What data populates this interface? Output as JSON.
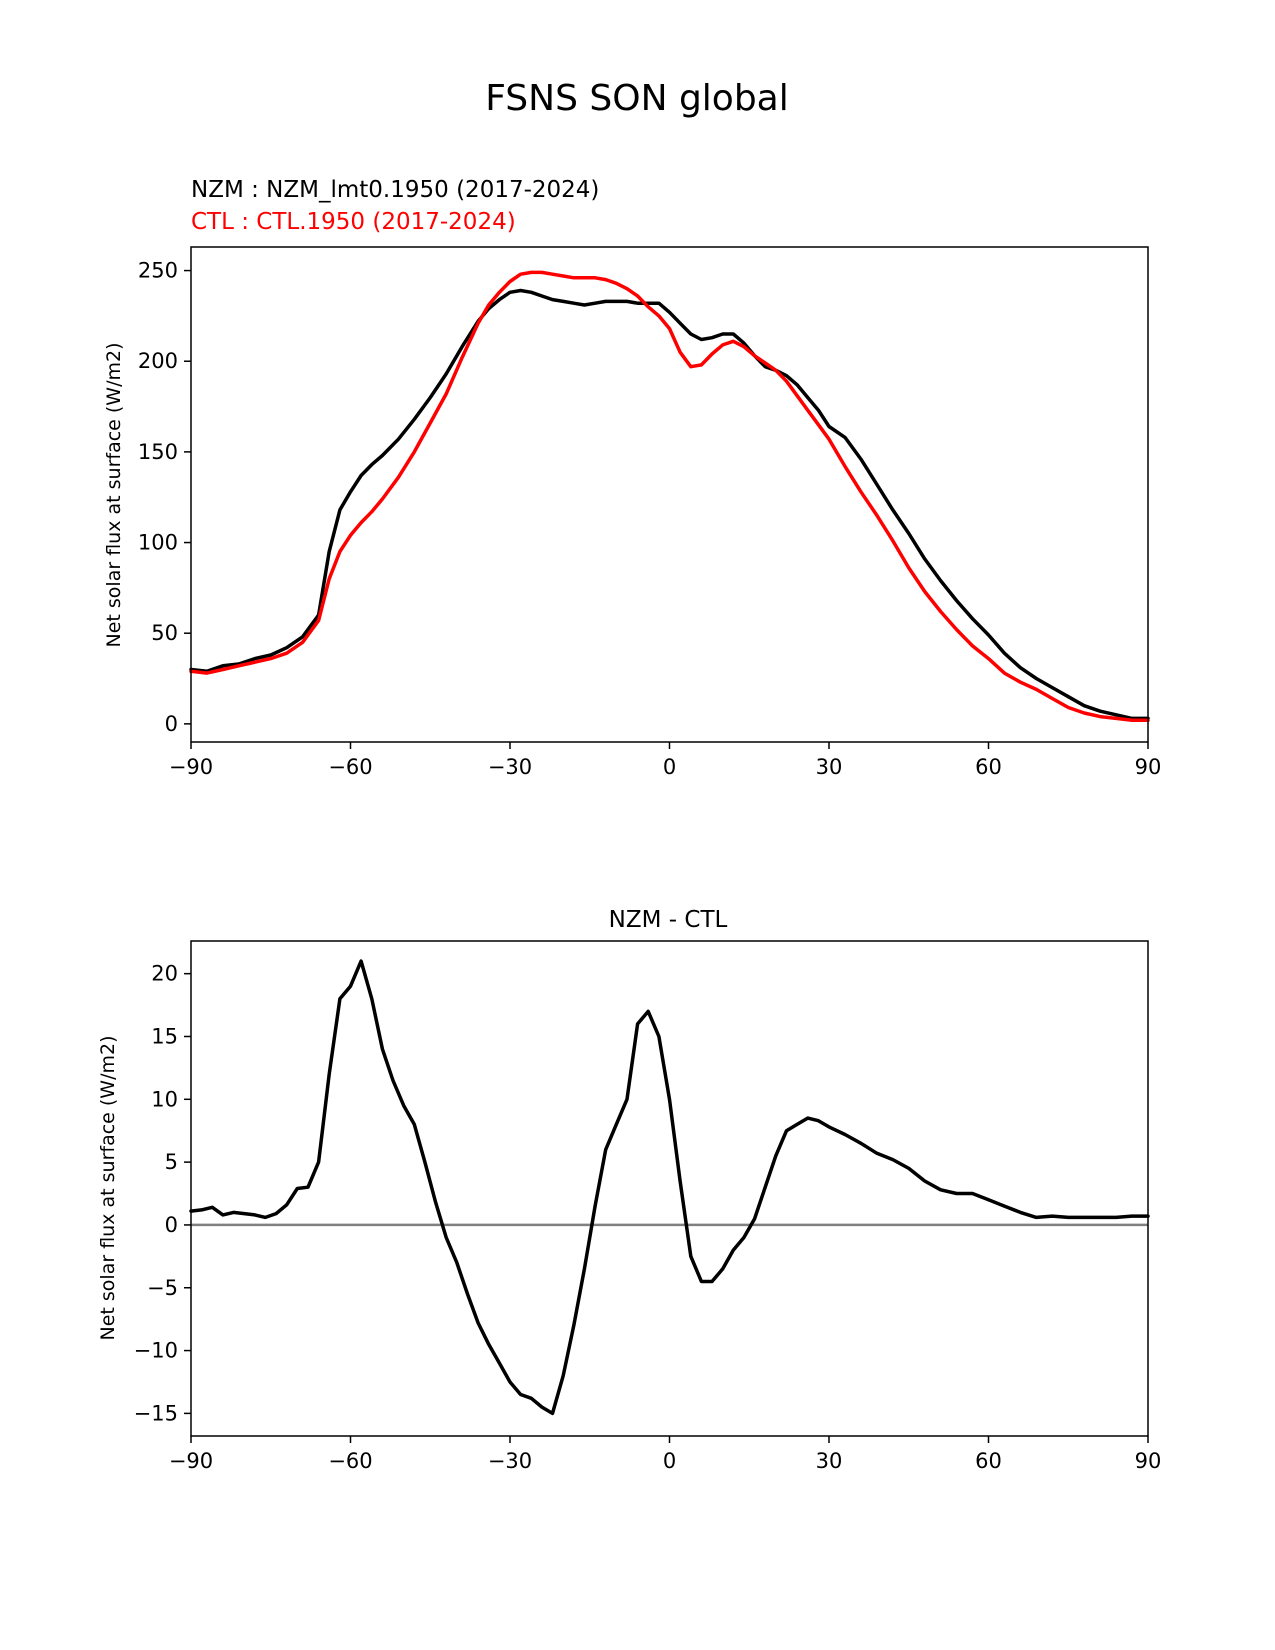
{
  "title": "FSNS SON global",
  "colors": {
    "nzm": "#000000",
    "ctl": "#ff0000",
    "zero_line": "#808080"
  },
  "chart_data": [
    {
      "type": "line",
      "legend_lines": [
        {
          "text": "NZM  : NZM_lmt0.1950 (2017-2024)",
          "color": "#000000"
        },
        {
          "text": "CTL : CTL.1950 (2017-2024)",
          "color": "#ff0000"
        }
      ],
      "xlabel": "",
      "ylabel": "Net solar flux at surface (W/m2)",
      "xlim": [
        -90,
        90
      ],
      "ylim": [
        -10,
        263
      ],
      "xticks": [
        -90,
        -60,
        -30,
        0,
        30,
        60,
        90
      ],
      "xtick_labels": [
        "−90",
        "−60",
        "−30",
        "0",
        "30",
        "60",
        "90"
      ],
      "yticks": [
        0,
        50,
        100,
        150,
        200,
        250
      ],
      "ytick_labels": [
        "0",
        "50",
        "100",
        "150",
        "200",
        "250"
      ],
      "series": [
        {
          "name": "NZM",
          "color": "#000000",
          "x": [
            -90,
            -87,
            -84,
            -81,
            -78,
            -75,
            -72,
            -69,
            -66,
            -64,
            -62,
            -60,
            -58,
            -56,
            -54,
            -51,
            -48,
            -45,
            -42,
            -39,
            -36,
            -34,
            -32,
            -30,
            -28,
            -26,
            -24,
            -22,
            -20,
            -18,
            -16,
            -14,
            -12,
            -10,
            -8,
            -6,
            -4,
            -2,
            0,
            2,
            4,
            6,
            8,
            10,
            12,
            14,
            16,
            18,
            20,
            22,
            24,
            26,
            28,
            30,
            33,
            36,
            39,
            42,
            45,
            48,
            51,
            54,
            57,
            60,
            63,
            66,
            69,
            72,
            75,
            78,
            81,
            84,
            87,
            90
          ],
          "y": [
            30,
            29,
            32,
            33,
            36,
            38,
            42,
            48,
            60,
            95,
            118,
            128,
            137,
            143,
            148,
            157,
            168,
            180,
            193,
            208,
            222,
            229,
            234,
            238,
            239,
            238,
            236,
            234,
            233,
            232,
            231,
            232,
            233,
            233,
            233,
            232,
            232,
            232,
            227,
            221,
            215,
            212,
            213,
            215,
            215,
            210,
            203,
            197,
            195,
            192,
            187,
            180,
            173,
            164,
            158,
            146,
            132,
            118,
            105,
            91,
            79,
            68,
            58,
            49,
            39,
            31,
            25,
            20,
            15,
            10,
            7,
            5,
            3,
            3
          ]
        },
        {
          "name": "CTL",
          "color": "#ff0000",
          "x": [
            -90,
            -87,
            -84,
            -81,
            -78,
            -75,
            -72,
            -69,
            -66,
            -64,
            -62,
            -60,
            -58,
            -56,
            -54,
            -51,
            -48,
            -45,
            -42,
            -39,
            -36,
            -34,
            -32,
            -30,
            -28,
            -26,
            -24,
            -22,
            -20,
            -18,
            -16,
            -14,
            -12,
            -10,
            -8,
            -6,
            -4,
            -2,
            0,
            2,
            4,
            6,
            8,
            10,
            12,
            14,
            16,
            18,
            20,
            22,
            24,
            26,
            28,
            30,
            33,
            36,
            39,
            42,
            45,
            48,
            51,
            54,
            57,
            60,
            63,
            66,
            69,
            72,
            75,
            78,
            81,
            84,
            87,
            90
          ],
          "y": [
            29,
            28,
            30,
            32,
            34,
            36,
            39,
            45,
            57,
            80,
            95,
            104,
            111,
            117,
            124,
            136,
            150,
            166,
            182,
            202,
            221,
            231,
            238,
            244,
            248,
            249,
            249,
            248,
            247,
            246,
            246,
            246,
            245,
            243,
            240,
            236,
            230,
            225,
            218,
            205,
            197,
            198,
            204,
            209,
            211,
            208,
            203,
            199,
            195,
            189,
            181,
            173,
            165,
            157,
            142,
            128,
            115,
            101,
            86,
            73,
            62,
            52,
            43,
            36,
            28,
            23,
            19,
            14,
            9,
            6,
            4,
            3,
            2,
            2
          ]
        }
      ]
    },
    {
      "type": "line",
      "title": "NZM - CTL",
      "xlabel": "",
      "ylabel": "Net solar flux at surface (W/m2)",
      "xlim": [
        -90,
        90
      ],
      "ylim": [
        -16.8,
        22.6
      ],
      "xticks": [
        -90,
        -60,
        -30,
        0,
        30,
        60,
        90
      ],
      "xtick_labels": [
        "−90",
        "−60",
        "−30",
        "0",
        "30",
        "60",
        "90"
      ],
      "yticks": [
        -15,
        -10,
        -5,
        0,
        5,
        10,
        15,
        20
      ],
      "ytick_labels": [
        "−15",
        "−10",
        "−5",
        "0",
        "5",
        "10",
        "15",
        "20"
      ],
      "zero_line": 0,
      "series": [
        {
          "name": "NZM - CTL",
          "color": "#000000",
          "x": [
            -90,
            -88,
            -86,
            -84,
            -82,
            -80,
            -78,
            -76,
            -74,
            -72,
            -70,
            -68,
            -66,
            -64,
            -62,
            -60,
            -58,
            -56,
            -54,
            -52,
            -50,
            -48,
            -46,
            -44,
            -42,
            -40,
            -38,
            -36,
            -34,
            -32,
            -30,
            -28,
            -26,
            -24,
            -22,
            -20,
            -18,
            -16,
            -14,
            -12,
            -10,
            -8,
            -6,
            -4,
            -2,
            0,
            2,
            4,
            6,
            8,
            10,
            12,
            14,
            16,
            18,
            20,
            22,
            24,
            26,
            28,
            30,
            33,
            36,
            39,
            42,
            45,
            48,
            51,
            54,
            57,
            60,
            63,
            66,
            69,
            72,
            75,
            78,
            81,
            84,
            87,
            90
          ],
          "y": [
            1.1,
            1.2,
            1.4,
            0.8,
            1.0,
            0.9,
            0.8,
            0.6,
            0.9,
            1.6,
            2.9,
            3.0,
            5.0,
            12.0,
            18.0,
            19.0,
            21.0,
            18.0,
            14.0,
            11.5,
            9.5,
            8.0,
            5.0,
            1.8,
            -1.0,
            -3.0,
            -5.5,
            -7.8,
            -9.5,
            -11.0,
            -12.5,
            -13.5,
            -13.8,
            -14.5,
            -15.0,
            -12.0,
            -8.0,
            -3.5,
            1.5,
            6.0,
            8.0,
            10.0,
            16.0,
            17.0,
            15.0,
            10.0,
            3.5,
            -2.5,
            -4.5,
            -4.5,
            -3.5,
            -2.0,
            -1.0,
            0.5,
            3.0,
            5.5,
            7.5,
            8.0,
            8.5,
            8.3,
            7.8,
            7.2,
            6.5,
            5.7,
            5.2,
            4.5,
            3.5,
            2.8,
            2.5,
            2.5,
            2.0,
            1.5,
            1.0,
            0.6,
            0.7,
            0.6,
            0.6,
            0.6,
            0.6,
            0.7,
            0.7
          ]
        }
      ]
    }
  ]
}
